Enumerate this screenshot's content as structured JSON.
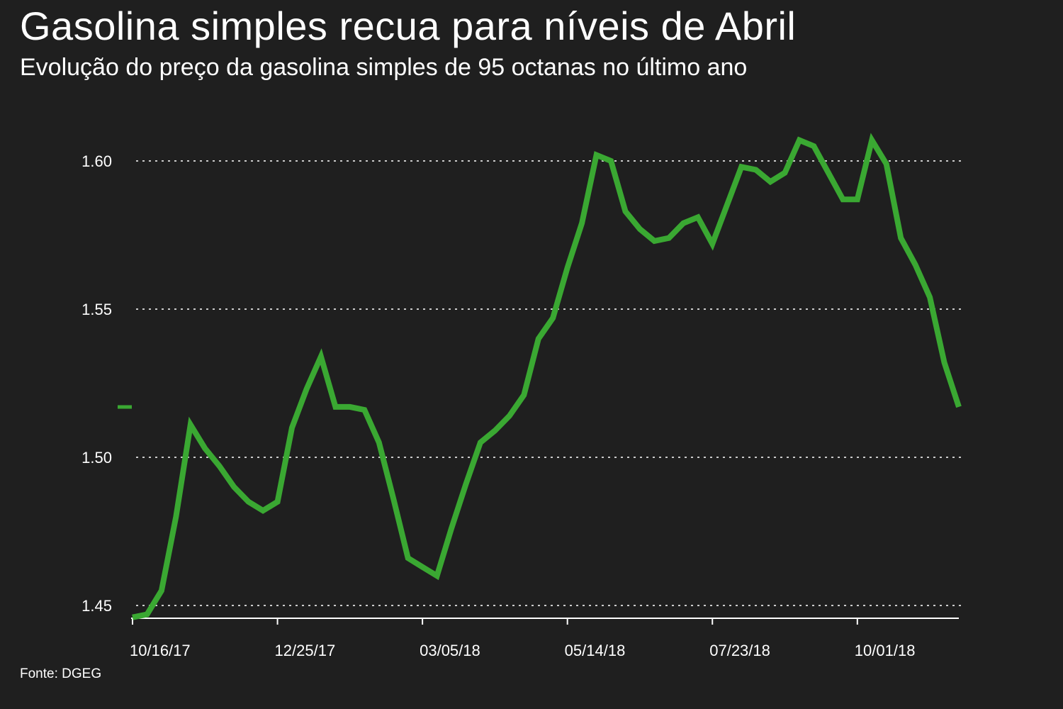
{
  "header": {
    "title": "Gasolina simples recua para níveis de Abril",
    "subtitle": "Evolução do preço da gasolina simples de 95 octanas no último ano"
  },
  "footer": {
    "source": "Fonte: DGEG"
  },
  "colors": {
    "background": "#1f1f1f",
    "line": "#3aa832",
    "text": "#ffffff",
    "grid": "#cccccc"
  },
  "chart_data": {
    "type": "line",
    "title": "Gasolina simples recua para níveis de Abril",
    "subtitle": "Evolução do preço da gasolina simples de 95 octanas no último ano",
    "xlabel": "",
    "ylabel": "",
    "ylim": [
      1.446,
      1.612
    ],
    "yticks": [
      1.45,
      1.5,
      1.55,
      1.6
    ],
    "ytick_labels": [
      "1.45",
      "1.50",
      "1.55",
      "1.60"
    ],
    "xtick_labels": [
      "10/16/17",
      "12/25/17",
      "03/05/18",
      "05/14/18",
      "07/23/18",
      "10/01/18"
    ],
    "xtick_indices": [
      0,
      10,
      20,
      30,
      40,
      50
    ],
    "grid": true,
    "series": [
      {
        "values": [
          1.446,
          1.447,
          1.455,
          1.48,
          1.511,
          1.503,
          1.497,
          1.49,
          1.485,
          1.482,
          1.485,
          1.51,
          1.523,
          1.534,
          1.517,
          1.517,
          1.516,
          1.505,
          1.486,
          1.466,
          1.463,
          1.46,
          1.476,
          1.491,
          1.505,
          1.509,
          1.514,
          1.521,
          1.54,
          1.547,
          1.564,
          1.579,
          1.602,
          1.6,
          1.583,
          1.577,
          1.573,
          1.574,
          1.579,
          1.581,
          1.572,
          1.585,
          1.598,
          1.597,
          1.593,
          1.596,
          1.607,
          1.605,
          1.596,
          1.587,
          1.587,
          1.607,
          1.599,
          1.574,
          1.565,
          1.554,
          1.532,
          1.517
        ]
      }
    ],
    "start_marker_value": 1.517
  }
}
